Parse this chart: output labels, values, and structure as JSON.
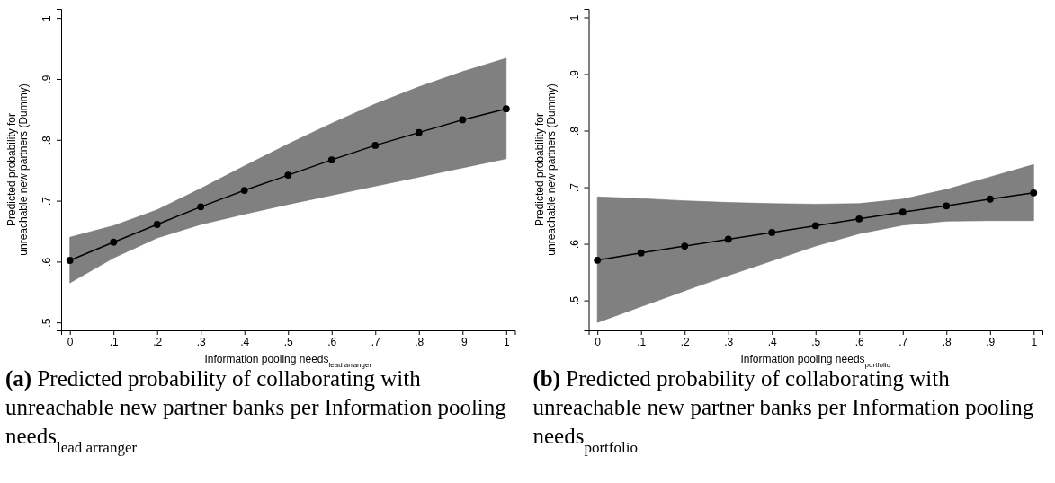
{
  "chart_data": [
    {
      "type": "line",
      "xlabel": "Information pooling needs$_{lead arranger}$",
      "ylabel": "Predicted probability for\nunreachable new partners (Dummy)",
      "x": [
        0,
        0.1,
        0.2,
        0.3,
        0.4,
        0.5,
        0.6,
        0.7,
        0.8,
        0.9,
        1
      ],
      "series": [
        {
          "color": "#000000",
          "values": [
            0.602,
            0.632,
            0.661,
            0.69,
            0.717,
            0.742,
            0.767,
            0.791,
            0.812,
            0.833,
            0.851
          ],
          "lower": [
            0.565,
            0.606,
            0.639,
            0.661,
            0.678,
            0.694,
            0.709,
            0.724,
            0.739,
            0.754,
            0.769
          ],
          "upper": [
            0.64,
            0.659,
            0.685,
            0.72,
            0.757,
            0.793,
            0.827,
            0.859,
            0.887,
            0.912,
            0.934
          ]
        }
      ],
      "xlim": [
        -0.02,
        1.02
      ],
      "ylim": [
        0.487,
        1.015
      ],
      "xticks": [
        {
          "value": 0,
          "label": "0"
        },
        {
          "value": 0.1,
          "label": ".1"
        },
        {
          "value": 0.2,
          "label": ".2"
        },
        {
          "value": 0.3,
          "label": ".3"
        },
        {
          "value": 0.4,
          "label": ".4"
        },
        {
          "value": 0.5,
          "label": ".5"
        },
        {
          "value": 0.6,
          "label": ".6"
        },
        {
          "value": 0.7,
          "label": ".7"
        },
        {
          "value": 0.8,
          "label": ".8"
        },
        {
          "value": 0.9,
          "label": ".9"
        },
        {
          "value": 1,
          "label": "1"
        }
      ],
      "yticks": [
        {
          "value": 0.5,
          "label": ".5"
        },
        {
          "value": 0.6,
          "label": ".6"
        },
        {
          "value": 0.7,
          "label": ".7"
        },
        {
          "value": 0.8,
          "label": ".8"
        },
        {
          "value": 0.9,
          "label": ".9"
        },
        {
          "value": 1,
          "label": "1"
        }
      ],
      "marker": "circle",
      "line_style": "solid",
      "grid": false,
      "annotations": [
        "(a) Predicted probability of collaborating with unreachable new partner banks per Information pooling needs$_{lead arranger}$"
      ]
    },
    {
      "type": "line",
      "xlabel": "Information pooling needs$_{portfolio}$",
      "ylabel": "Predicted probability for\nunreachable new partners (Dummy)",
      "x": [
        0,
        0.1,
        0.2,
        0.3,
        0.4,
        0.5,
        0.6,
        0.7,
        0.8,
        0.9,
        1
      ],
      "series": [
        {
          "color": "#000000",
          "values": [
            0.571,
            0.584,
            0.596,
            0.608,
            0.62,
            0.632,
            0.644,
            0.656,
            0.667,
            0.679,
            0.69
          ],
          "lower": [
            0.461,
            0.489,
            0.517,
            0.544,
            0.57,
            0.596,
            0.618,
            0.633,
            0.64,
            0.641,
            0.641
          ],
          "upper": [
            0.683,
            0.68,
            0.676,
            0.673,
            0.671,
            0.67,
            0.671,
            0.679,
            0.696,
            0.718,
            0.74
          ]
        }
      ],
      "xlim": [
        -0.02,
        1.02
      ],
      "ylim": [
        0.447,
        1.015
      ],
      "xticks": [
        {
          "value": 0,
          "label": "0"
        },
        {
          "value": 0.1,
          "label": ".1"
        },
        {
          "value": 0.2,
          "label": ".2"
        },
        {
          "value": 0.3,
          "label": ".3"
        },
        {
          "value": 0.4,
          "label": ".4"
        },
        {
          "value": 0.5,
          "label": ".5"
        },
        {
          "value": 0.6,
          "label": ".6"
        },
        {
          "value": 0.7,
          "label": ".7"
        },
        {
          "value": 0.8,
          "label": ".8"
        },
        {
          "value": 0.9,
          "label": ".9"
        },
        {
          "value": 1,
          "label": "1"
        }
      ],
      "yticks": [
        {
          "value": 0.5,
          "label": ".5"
        },
        {
          "value": 0.6,
          "label": ".6"
        },
        {
          "value": 0.7,
          "label": ".7"
        },
        {
          "value": 0.8,
          "label": ".8"
        },
        {
          "value": 0.9,
          "label": ".9"
        },
        {
          "value": 1,
          "label": "1"
        }
      ],
      "marker": "circle",
      "line_style": "solid",
      "grid": false,
      "annotations": [
        "(b) Predicted probability of collaborating with unreachable new partner banks per Information pooling needs$_{portfolio}$"
      ]
    }
  ]
}
